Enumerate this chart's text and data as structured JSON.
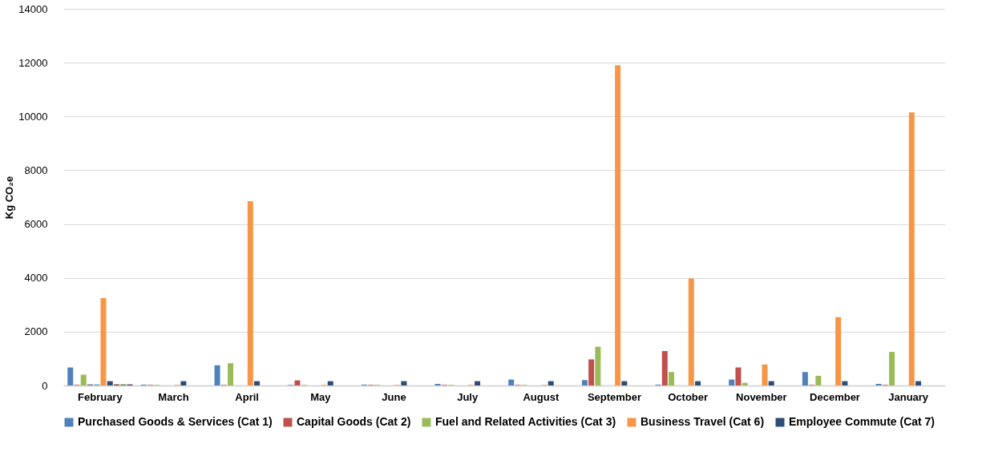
{
  "chart_data": {
    "type": "bar",
    "ylabel": "Kg CO₂e",
    "categories": [
      "February",
      "March",
      "April",
      "May",
      "June",
      "July",
      "August",
      "September",
      "October",
      "November",
      "December",
      "January"
    ],
    "ylim": [
      0,
      14000
    ],
    "yticks": [
      0,
      2000,
      4000,
      6000,
      8000,
      10000,
      12000,
      14000
    ],
    "grid": "y",
    "legend": "bottom",
    "series": [
      {
        "name": "Purchased Goods & Services (Cat 1)",
        "color": "#4f81bd",
        "values": [
          670,
          30,
          750,
          20,
          30,
          60,
          220,
          200,
          30,
          220,
          500,
          60
        ]
      },
      {
        "name": "Capital Goods (Cat 2)",
        "color": "#c0504d",
        "values": [
          20,
          20,
          20,
          190,
          20,
          20,
          20,
          970,
          1280,
          670,
          20,
          20
        ]
      },
      {
        "name": "Fuel and Related Activities (Cat 3)",
        "color": "#9bbb59",
        "values": [
          400,
          20,
          830,
          20,
          20,
          20,
          20,
          1440,
          500,
          100,
          360,
          1250
        ]
      },
      {
        "color": "#8064a2",
        "values": [
          40,
          null,
          null,
          null,
          null,
          null,
          null,
          null,
          null,
          null,
          null,
          null
        ]
      },
      {
        "color": "#4bacc6",
        "values": [
          40,
          null,
          null,
          null,
          null,
          null,
          null,
          null,
          null,
          null,
          null,
          null
        ]
      },
      {
        "name": "Business Travel (Cat 6)",
        "color": "#f79646",
        "values": [
          3250,
          20,
          6850,
          20,
          20,
          20,
          20,
          11900,
          3980,
          780,
          2540,
          10150
        ]
      },
      {
        "name": "Employee Commute (Cat 7)",
        "color": "#2c4d75",
        "values": [
          160,
          160,
          160,
          160,
          160,
          160,
          160,
          160,
          160,
          160,
          160,
          160
        ]
      },
      {
        "color": "#772c2a",
        "values": [
          40,
          null,
          null,
          null,
          null,
          null,
          null,
          null,
          null,
          null,
          null,
          null
        ]
      },
      {
        "color": "#5f7530",
        "values": [
          40,
          null,
          null,
          null,
          null,
          null,
          null,
          null,
          null,
          null,
          null,
          null
        ]
      },
      {
        "color": "#4d3b62",
        "values": [
          40,
          null,
          null,
          null,
          null,
          null,
          null,
          null,
          null,
          null,
          null,
          null
        ]
      }
    ]
  }
}
